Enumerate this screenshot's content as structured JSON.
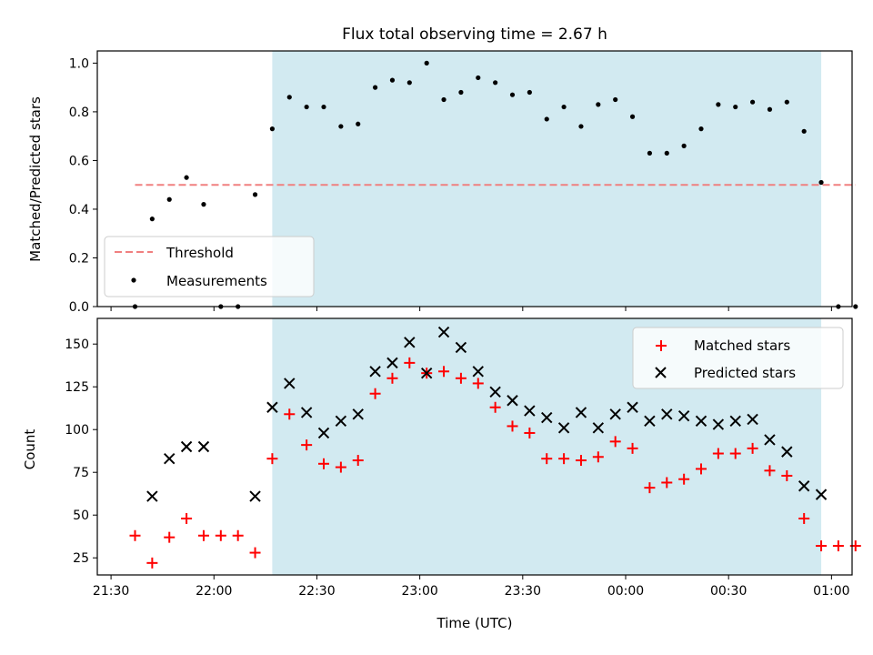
{
  "chart_data": [
    {
      "type": "scatter",
      "title": "Flux total observing time = 2.67 h",
      "ylabel": "Matched/Predicted stars",
      "xlabel": "",
      "xlim": [
        "21:26",
        "01:06"
      ],
      "ylim": [
        0,
        1.05
      ],
      "yticks": [
        0.0,
        0.2,
        0.4,
        0.6,
        0.8,
        1.0
      ],
      "ytick_labels": [
        "0.0",
        "0.2",
        "0.4",
        "0.6",
        "0.8",
        "1.0"
      ],
      "xticks": [
        "21:30",
        "22:00",
        "22:30",
        "23:00",
        "23:30",
        "00:00",
        "00:30",
        "01:00"
      ],
      "shaded_interval": [
        "22:17",
        "00:57"
      ],
      "shade_color": "#add8e6",
      "legend_position": "lower left",
      "series": [
        {
          "name": "Threshold",
          "kind": "dashed-line",
          "color": "#f08080",
          "x": [
            "21:37",
            "01:07"
          ],
          "y": [
            0.5,
            0.5
          ]
        },
        {
          "name": "Measurements",
          "kind": "dot",
          "color": "#000000",
          "x": [
            "21:37",
            "21:42",
            "21:47",
            "21:52",
            "21:57",
            "22:02",
            "22:07",
            "22:12",
            "22:17",
            "22:22",
            "22:27",
            "22:32",
            "22:37",
            "22:42",
            "22:47",
            "22:52",
            "22:57",
            "23:02",
            "23:07",
            "23:12",
            "23:17",
            "23:22",
            "23:27",
            "23:32",
            "23:37",
            "23:42",
            "23:47",
            "23:52",
            "23:57",
            "00:02",
            "00:07",
            "00:12",
            "00:17",
            "00:22",
            "00:27",
            "00:32",
            "00:37",
            "00:42",
            "00:47",
            "00:52",
            "00:57",
            "01:02",
            "01:07"
          ],
          "y": [
            0.0,
            0.36,
            0.44,
            0.53,
            0.42,
            0.0,
            0.0,
            0.46,
            0.73,
            0.86,
            0.82,
            0.82,
            0.74,
            0.75,
            0.9,
            0.93,
            0.92,
            1.0,
            0.85,
            0.88,
            0.94,
            0.92,
            0.87,
            0.88,
            0.77,
            0.82,
            0.74,
            0.83,
            0.85,
            0.78,
            0.63,
            0.63,
            0.66,
            0.73,
            0.83,
            0.82,
            0.84,
            0.81,
            0.84,
            0.72,
            0.51,
            0.0,
            0.0
          ]
        }
      ]
    },
    {
      "type": "scatter",
      "title": "",
      "ylabel": "Count",
      "xlabel": "Time (UTC)",
      "xlim": [
        "21:26",
        "01:06"
      ],
      "ylim": [
        15,
        165
      ],
      "yticks": [
        25,
        50,
        75,
        100,
        125,
        150
      ],
      "ytick_labels": [
        "25",
        "50",
        "75",
        "100",
        "125",
        "150"
      ],
      "xticks": [
        "21:30",
        "22:00",
        "22:30",
        "23:00",
        "23:30",
        "00:00",
        "00:30",
        "01:00"
      ],
      "xtick_labels": [
        "21:30",
        "22:00",
        "22:30",
        "23:00",
        "23:30",
        "00:00",
        "00:30",
        "01:00"
      ],
      "shaded_interval": [
        "22:17",
        "00:57"
      ],
      "shade_color": "#add8e6",
      "legend_position": "upper right",
      "series": [
        {
          "name": "Matched stars",
          "kind": "plus",
          "color": "#ff0000",
          "x": [
            "21:37",
            "21:42",
            "21:47",
            "21:52",
            "21:57",
            "22:02",
            "22:07",
            "22:12",
            "22:17",
            "22:22",
            "22:27",
            "22:32",
            "22:37",
            "22:42",
            "22:47",
            "22:52",
            "22:57",
            "23:02",
            "23:07",
            "23:12",
            "23:17",
            "23:22",
            "23:27",
            "23:32",
            "23:37",
            "23:42",
            "23:47",
            "23:52",
            "23:57",
            "00:02",
            "00:07",
            "00:12",
            "00:17",
            "00:22",
            "00:27",
            "00:32",
            "00:37",
            "00:42",
            "00:47",
            "00:52",
            "00:57",
            "01:02",
            "01:07"
          ],
          "y": [
            38,
            22,
            37,
            48,
            38,
            38,
            38,
            28,
            83,
            109,
            91,
            80,
            78,
            82,
            121,
            130,
            139,
            133,
            134,
            130,
            127,
            113,
            102,
            98,
            83,
            83,
            82,
            84,
            93,
            89,
            66,
            69,
            71,
            77,
            86,
            86,
            89,
            76,
            73,
            48,
            32,
            32,
            32
          ]
        },
        {
          "name": "Predicted stars",
          "kind": "x",
          "color": "#000000",
          "x": [
            "21:42",
            "21:47",
            "21:52",
            "21:57",
            "22:12",
            "22:17",
            "22:22",
            "22:27",
            "22:32",
            "22:37",
            "22:42",
            "22:47",
            "22:52",
            "22:57",
            "23:02",
            "23:07",
            "23:12",
            "23:17",
            "23:22",
            "23:27",
            "23:32",
            "23:37",
            "23:42",
            "23:47",
            "23:52",
            "23:57",
            "00:02",
            "00:07",
            "00:12",
            "00:17",
            "00:22",
            "00:27",
            "00:32",
            "00:37",
            "00:42",
            "00:47",
            "00:52",
            "00:57"
          ],
          "y": [
            61,
            83,
            90,
            90,
            61,
            113,
            127,
            110,
            98,
            105,
            109,
            134,
            139,
            151,
            133,
            157,
            148,
            134,
            122,
            117,
            111,
            107,
            101,
            110,
            101,
            109,
            113,
            105,
            109,
            108,
            105,
            103,
            105,
            106,
            94,
            87,
            67,
            62
          ]
        }
      ]
    }
  ]
}
